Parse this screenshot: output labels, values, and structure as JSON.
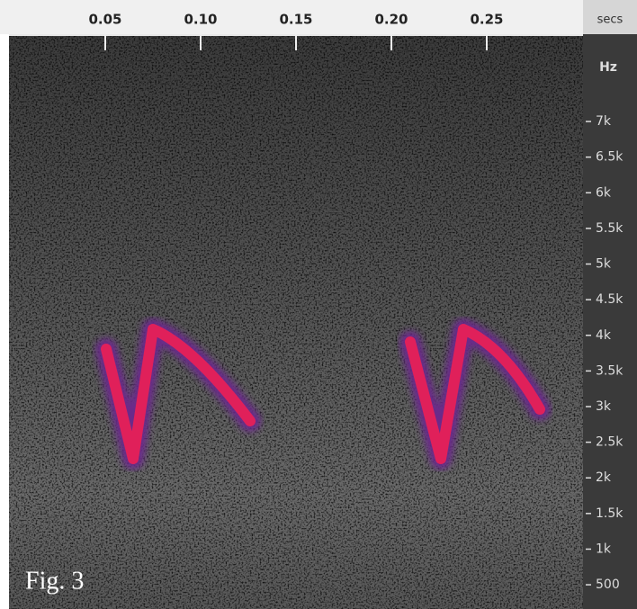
{
  "chart_data": {
    "type": "spectrogram",
    "x_label": "secs",
    "y_label": "Hz",
    "annotation": "Fig. 3",
    "xlim": [
      0,
      0.3
    ],
    "xticks": [
      0.05,
      {
        "value": 0.1,
        "label": "0.10"
      },
      0.15,
      {
        "value": 0.2,
        "label": "0.20"
      },
      0.25
    ],
    "ylim": [
      160,
      8225
    ],
    "yticks": [
      500,
      {
        "value": 1000,
        "label": "1k"
      },
      {
        "value": 1500,
        "label": "1.5k"
      },
      {
        "value": 2000,
        "label": "2k"
      },
      {
        "value": 2500,
        "label": "2.5k"
      },
      {
        "value": 3000,
        "label": "3k"
      },
      {
        "value": 3500,
        "label": "3.5k"
      },
      {
        "value": 4000,
        "label": "4k"
      },
      {
        "value": 4500,
        "label": "4.5k"
      },
      {
        "value": 5000,
        "label": "5k"
      },
      {
        "value": 5500,
        "label": "5.5k"
      },
      {
        "value": 6000,
        "label": "6k"
      },
      {
        "value": 6500,
        "label": "6.5k"
      },
      {
        "value": 7000,
        "label": "7k"
      }
    ]
  }
}
